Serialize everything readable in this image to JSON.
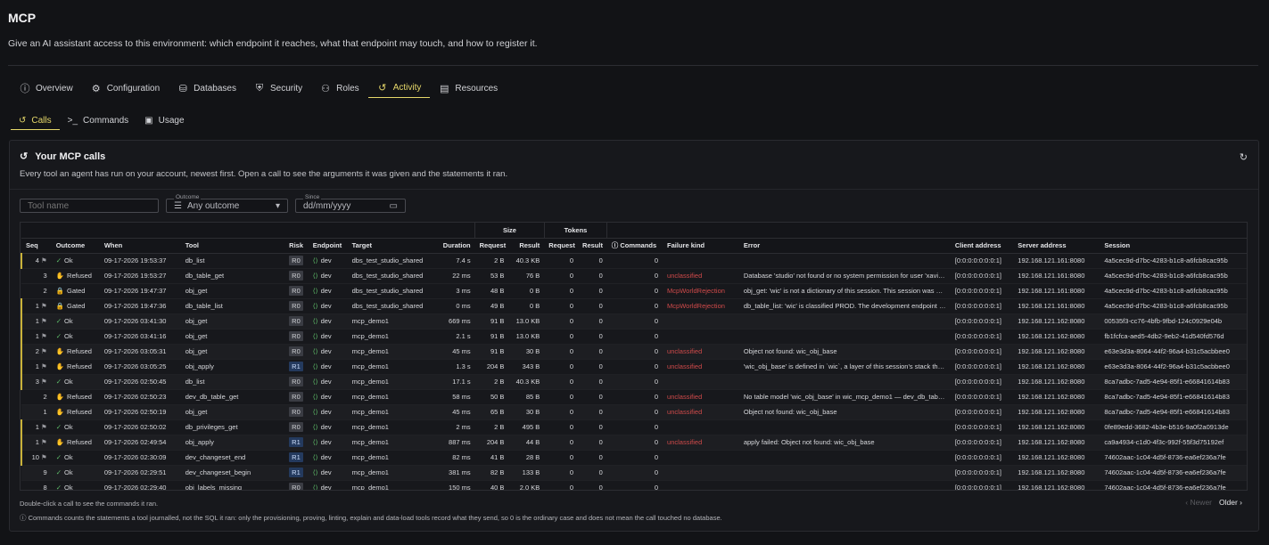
{
  "app": {
    "title": "MCP",
    "subtitle": "Give an AI assistant access to this environment: which endpoint it reaches, what that endpoint may touch, and how to register it."
  },
  "tabs": [
    {
      "label": "Overview",
      "icon": "info-icon",
      "glyph": "ⓘ"
    },
    {
      "label": "Configuration",
      "icon": "gear-icon",
      "glyph": "⚙"
    },
    {
      "label": "Databases",
      "icon": "database-icon",
      "glyph": "⛁"
    },
    {
      "label": "Security",
      "icon": "shield-icon",
      "glyph": "⛨"
    },
    {
      "label": "Roles",
      "icon": "users-icon",
      "glyph": "⚇"
    },
    {
      "label": "Activity",
      "icon": "history-icon",
      "glyph": "↺"
    },
    {
      "label": "Resources",
      "icon": "book-icon",
      "glyph": "▤"
    }
  ],
  "active_tab": "Activity",
  "subtabs": [
    {
      "label": "Calls",
      "icon": "history-icon",
      "glyph": "↺"
    },
    {
      "label": "Commands",
      "icon": "terminal-icon",
      "glyph": ">_"
    },
    {
      "label": "Usage",
      "icon": "chart-icon",
      "glyph": "▣"
    }
  ],
  "panel": {
    "title": "Your MCP calls",
    "description": "Every tool an agent has run on your account, newest first. Open a call to see the arguments it was given and the statements it ran.",
    "refresh_icon": "refresh-icon"
  },
  "filters": {
    "tool_placeholder": "Tool name",
    "outcome_label": "Outcome",
    "outcome_value": "Any outcome",
    "since_label": "Since",
    "since_value": "dd/mm/yyyy"
  },
  "table": {
    "groups": {
      "size": "Size",
      "tokens": "Tokens"
    },
    "headers": [
      "Seq",
      "Outcome",
      "When",
      "Tool",
      "Risk",
      "Endpoint",
      "Target",
      "Duration",
      "Request",
      "Result",
      "Request",
      "Result",
      "Commands",
      "Failure kind",
      "Error",
      "Client address",
      "Server address",
      "Session"
    ],
    "rows": [
      {
        "seq": "4",
        "flag": true,
        "outcome": "Ok",
        "when": "09-17-2026 19:53:37",
        "tool": "db_list",
        "risk": "R0",
        "endpoint": "dev",
        "target": "dbs_test_studio_shared",
        "duration": "7.4 s",
        "req": "2 B",
        "res": "40.3 KB",
        "treq": "0",
        "tres": "0",
        "cmds": "0",
        "failure": "",
        "error": "",
        "client": "[0:0:0:0:0:0:0:1]",
        "server": "192.168.121.161:8080",
        "session": "4a5cec9d-d7bc-4283-b1c8-a6fcb8cac95b"
      },
      {
        "seq": "3",
        "flag": false,
        "outcome": "Refused",
        "when": "09-17-2026 19:53:27",
        "tool": "db_table_get",
        "risk": "R0",
        "endpoint": "dev",
        "target": "dbs_test_studio_shared",
        "duration": "22 ms",
        "req": "53 B",
        "res": "76 B",
        "treq": "0",
        "tres": "0",
        "cmds": "0",
        "failure": "unclassified",
        "error": "Database 'studio' not found or no system permission for user 'xavier...",
        "client": "[0:0:0:0:0:0:0:1]",
        "server": "192.168.121.161:8080",
        "session": "4a5cec9d-d7bc-4283-b1c8-a6fcb8cac95b"
      },
      {
        "seq": "2",
        "flag": false,
        "outcome": "Gated",
        "when": "09-17-2026 19:47:37",
        "tool": "obj_get",
        "risk": "R0",
        "endpoint": "dev",
        "target": "dbs_test_studio_shared",
        "duration": "3 ms",
        "req": "48 B",
        "res": "0 B",
        "treq": "0",
        "tres": "0",
        "cmds": "0",
        "failure": "McpWorldRejection",
        "error": "obj_get: 'wic' is not a dictionary of this session. This session was op...",
        "client": "[0:0:0:0:0:0:0:1]",
        "server": "192.168.121.161:8080",
        "session": "4a5cec9d-d7bc-4283-b1c8-a6fcb8cac95b"
      },
      {
        "seq": "1",
        "flag": true,
        "outcome": "Gated",
        "when": "09-17-2026 19:47:36",
        "tool": "db_table_list",
        "risk": "R0",
        "endpoint": "dev",
        "target": "dbs_test_studio_shared",
        "duration": "0 ms",
        "req": "49 B",
        "res": "0 B",
        "treq": "0",
        "tres": "0",
        "cmds": "0",
        "failure": "McpWorldRejection",
        "error": "db_table_list: 'wic' is classified PROD. The development endpoint r...",
        "client": "[0:0:0:0:0:0:0:1]",
        "server": "192.168.121.161:8080",
        "session": "4a5cec9d-d7bc-4283-b1c8-a6fcb8cac95b"
      },
      {
        "seq": "1",
        "flag": true,
        "outcome": "Ok",
        "when": "09-17-2026 03:41:30",
        "tool": "obj_get",
        "risk": "R0",
        "endpoint": "dev",
        "target": "mcp_demo1",
        "duration": "669 ms",
        "req": "91 B",
        "res": "13.0 KB",
        "treq": "0",
        "tres": "0",
        "cmds": "0",
        "failure": "",
        "error": "",
        "client": "[0:0:0:0:0:0:0:1]",
        "server": "192.168.121.162:8080",
        "session": "00535f3-cc76-4bfb-9fbd-124c0929e04b"
      },
      {
        "seq": "1",
        "flag": true,
        "outcome": "Ok",
        "when": "09-17-2026 03:41:16",
        "tool": "obj_get",
        "risk": "R0",
        "endpoint": "dev",
        "target": "mcp_demo1",
        "duration": "2.1 s",
        "req": "91 B",
        "res": "13.0 KB",
        "treq": "0",
        "tres": "0",
        "cmds": "0",
        "failure": "",
        "error": "",
        "client": "[0:0:0:0:0:0:0:1]",
        "server": "192.168.121.162:8080",
        "session": "fb1fcfca-aed5-4db2-9eb2-41d540fd576d"
      },
      {
        "seq": "2",
        "flag": true,
        "outcome": "Refused",
        "when": "09-17-2026 03:05:31",
        "tool": "obj_get",
        "risk": "R0",
        "endpoint": "dev",
        "target": "mcp_demo1",
        "duration": "45 ms",
        "req": "91 B",
        "res": "30 B",
        "treq": "0",
        "tres": "0",
        "cmds": "0",
        "failure": "unclassified",
        "error": "Object not found: wic_obj_base",
        "client": "[0:0:0:0:0:0:0:1]",
        "server": "192.168.121.162:8080",
        "session": "e63e3d3a-8064-44f2-96a4-b31c5acbbee0"
      },
      {
        "seq": "1",
        "flag": true,
        "outcome": "Refused",
        "when": "09-17-2026 03:05:25",
        "tool": "obj_apply",
        "risk": "R1",
        "endpoint": "dev",
        "target": "mcp_demo1",
        "duration": "1.3 s",
        "req": "204 B",
        "res": "343 B",
        "treq": "0",
        "tres": "0",
        "cmds": "0",
        "failure": "unclassified",
        "error": "'wic_obj_base' is defined in `wic`, a layer of this session's stack that...",
        "client": "[0:0:0:0:0:0:0:1]",
        "server": "192.168.121.162:8080",
        "session": "e63e3d3a-8064-44f2-96a4-b31c5acbbee0"
      },
      {
        "seq": "3",
        "flag": true,
        "outcome": "Ok",
        "when": "09-17-2026 02:50:45",
        "tool": "db_list",
        "risk": "R0",
        "endpoint": "dev",
        "target": "mcp_demo1",
        "duration": "17.1 s",
        "req": "2 B",
        "res": "40.3 KB",
        "treq": "0",
        "tres": "0",
        "cmds": "0",
        "failure": "",
        "error": "",
        "client": "[0:0:0:0:0:0:0:1]",
        "server": "192.168.121.162:8080",
        "session": "8ca7adbc-7ad5-4e94-85f1-e66841614b83"
      },
      {
        "seq": "2",
        "flag": false,
        "outcome": "Refused",
        "when": "09-17-2026 02:50:23",
        "tool": "dev_db_table_get",
        "risk": "R0",
        "endpoint": "dev",
        "target": "mcp_demo1",
        "duration": "58 ms",
        "req": "50 B",
        "res": "85 B",
        "treq": "0",
        "tres": "0",
        "cmds": "0",
        "failure": "unclassified",
        "error": "No table model 'wic_obj_base' in wic_mcp_demo1 — dev_db_table...",
        "client": "[0:0:0:0:0:0:0:1]",
        "server": "192.168.121.162:8080",
        "session": "8ca7adbc-7ad5-4e94-85f1-e66841614b83"
      },
      {
        "seq": "1",
        "flag": false,
        "outcome": "Refused",
        "when": "09-17-2026 02:50:19",
        "tool": "obj_get",
        "risk": "R0",
        "endpoint": "dev",
        "target": "mcp_demo1",
        "duration": "45 ms",
        "req": "65 B",
        "res": "30 B",
        "treq": "0",
        "tres": "0",
        "cmds": "0",
        "failure": "unclassified",
        "error": "Object not found: wic_obj_base",
        "client": "[0:0:0:0:0:0:0:1]",
        "server": "192.168.121.162:8080",
        "session": "8ca7adbc-7ad5-4e94-85f1-e66841614b83"
      },
      {
        "seq": "1",
        "flag": true,
        "outcome": "Ok",
        "when": "09-17-2026 02:50:02",
        "tool": "db_privileges_get",
        "risk": "R0",
        "endpoint": "dev",
        "target": "mcp_demo1",
        "duration": "2 ms",
        "req": "2 B",
        "res": "495 B",
        "treq": "0",
        "tres": "0",
        "cmds": "0",
        "failure": "",
        "error": "",
        "client": "[0:0:0:0:0:0:0:1]",
        "server": "192.168.121.162:8080",
        "session": "0fe89edd-3682-4b3e-b516-9a0f2a0913de"
      },
      {
        "seq": "1",
        "flag": true,
        "outcome": "Refused",
        "when": "09-17-2026 02:49:54",
        "tool": "obj_apply",
        "risk": "R1",
        "endpoint": "dev",
        "target": "mcp_demo1",
        "duration": "887 ms",
        "req": "204 B",
        "res": "44 B",
        "treq": "0",
        "tres": "0",
        "cmds": "0",
        "failure": "unclassified",
        "error": "apply failed: Object not found: wic_obj_base",
        "client": "[0:0:0:0:0:0:0:1]",
        "server": "192.168.121.162:8080",
        "session": "ca9a4934-c1d0-4f3c-992f-55f3d75192ef"
      },
      {
        "seq": "10",
        "flag": true,
        "outcome": "Ok",
        "when": "09-17-2026 02:30:09",
        "tool": "dev_changeset_end",
        "risk": "R1",
        "endpoint": "dev",
        "target": "mcp_demo1",
        "duration": "82 ms",
        "req": "41 B",
        "res": "28 B",
        "treq": "0",
        "tres": "0",
        "cmds": "0",
        "failure": "",
        "error": "",
        "client": "[0:0:0:0:0:0:0:1]",
        "server": "192.168.121.162:8080",
        "session": "74602aac-1c04-4d5f-8736-ea6ef236a7fe"
      },
      {
        "seq": "9",
        "flag": false,
        "outcome": "Ok",
        "when": "09-17-2026 02:29:51",
        "tool": "dev_changeset_begin",
        "risk": "R1",
        "endpoint": "dev",
        "target": "mcp_demo1",
        "duration": "381 ms",
        "req": "82 B",
        "res": "133 B",
        "treq": "0",
        "tres": "0",
        "cmds": "0",
        "failure": "",
        "error": "",
        "client": "[0:0:0:0:0:0:0:1]",
        "server": "192.168.121.162:8080",
        "session": "74602aac-1c04-4d5f-8736-ea6ef236a7fe"
      },
      {
        "seq": "8",
        "flag": false,
        "outcome": "Ok",
        "when": "09-17-2026 02:29:40",
        "tool": "obj_labels_missing",
        "risk": "R0",
        "endpoint": "dev",
        "target": "mcp_demo1",
        "duration": "150 ms",
        "req": "40 B",
        "res": "2.0 KB",
        "treq": "0",
        "tres": "0",
        "cmds": "0",
        "failure": "",
        "error": "",
        "client": "[0:0:0:0:0:0:0:1]",
        "server": "192.168.121.162:8080",
        "session": "74602aac-1c04-4d5f-8736-ea6ef236a7fe"
      }
    ]
  },
  "footer": {
    "hint": "Double-click a call to see the commands it ran.",
    "note": "Commands counts the statements a tool journalled, not the SQL it ran: only the provisioning, proving, linting, explain and data-load tools record what they send, so 0 is the ordinary case and does not mean the call touched no database.",
    "newer": "Newer",
    "older": "Older"
  },
  "colors": {
    "accent": "#e6d86a",
    "ok": "#5fbf6a",
    "refused": "#d6a33a",
    "gated": "#6b8fd6",
    "failure": "#d04a4a"
  }
}
